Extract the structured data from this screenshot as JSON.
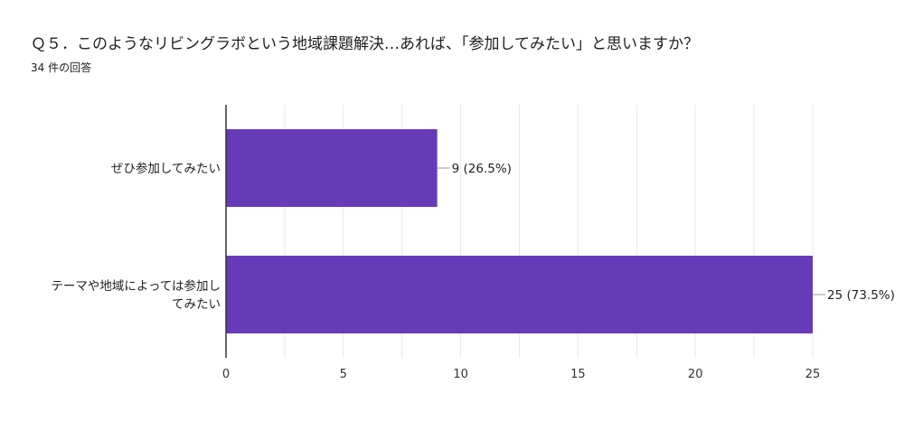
{
  "header": {
    "question": "Ｑ５．このようなリビングラボという地域課題解決…あれば、「参加してみたい」と思いますか？",
    "response_count": "34 件の回答"
  },
  "chart_data": {
    "type": "bar",
    "orientation": "horizontal",
    "categories": [
      [
        "ぜひ参加してみたい"
      ],
      [
        "テーマや地域によっては参加し",
        "てみたい"
      ]
    ],
    "values": [
      9,
      25
    ],
    "data_labels": [
      "9 (26.5%)",
      "25 (73.5%)"
    ],
    "xlim": [
      0,
      25
    ],
    "xticks": [
      0,
      5,
      10,
      15,
      20,
      25
    ],
    "grid": true,
    "bar_color": "#673ab7"
  }
}
